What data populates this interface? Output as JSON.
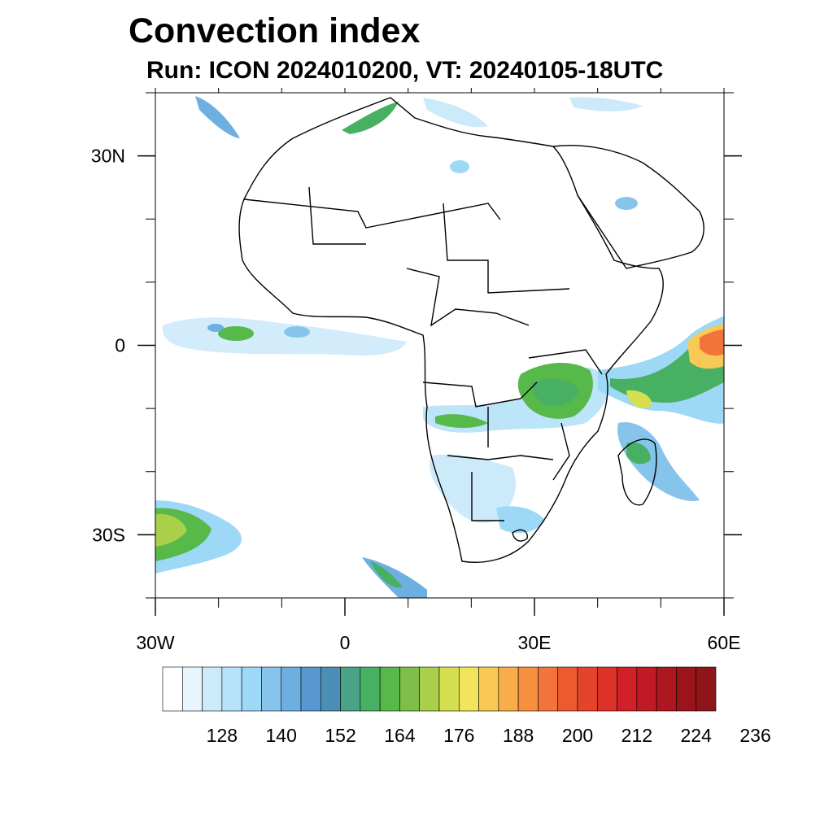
{
  "title": "Convection index",
  "subtitle": "Run: ICON 2024010200,  VT: 20240105-18UTC",
  "map": {
    "lon_ticks": [
      {
        "value": -30,
        "label": "30W"
      },
      {
        "value": 0,
        "label": "0"
      },
      {
        "value": 30,
        "label": "30E"
      },
      {
        "value": 60,
        "label": "60E"
      }
    ],
    "lat_ticks": [
      {
        "value": 30,
        "label": "30N"
      },
      {
        "value": 0,
        "label": "0"
      },
      {
        "value": -30,
        "label": "30S"
      }
    ]
  },
  "colorbar": {
    "colors": [
      "#ffffff",
      "#e8f5fd",
      "#cdeafb",
      "#b6e2fa",
      "#9dd8f6",
      "#86c4ec",
      "#6eafe2",
      "#5897cf",
      "#4a8fb5",
      "#4aa387",
      "#48b062",
      "#57b94a",
      "#7dbf48",
      "#a9cf4b",
      "#d5df50",
      "#f2e55b",
      "#f8c955",
      "#f8ad48",
      "#f6903e",
      "#f2743a",
      "#ec5a2f",
      "#e4442b",
      "#dd3129",
      "#d12027",
      "#c01a25",
      "#ad1720",
      "#9b141c",
      "#8e1519"
    ],
    "labels": [
      "128",
      "140",
      "152",
      "164",
      "176",
      "188",
      "200",
      "212",
      "224",
      "236"
    ]
  }
}
